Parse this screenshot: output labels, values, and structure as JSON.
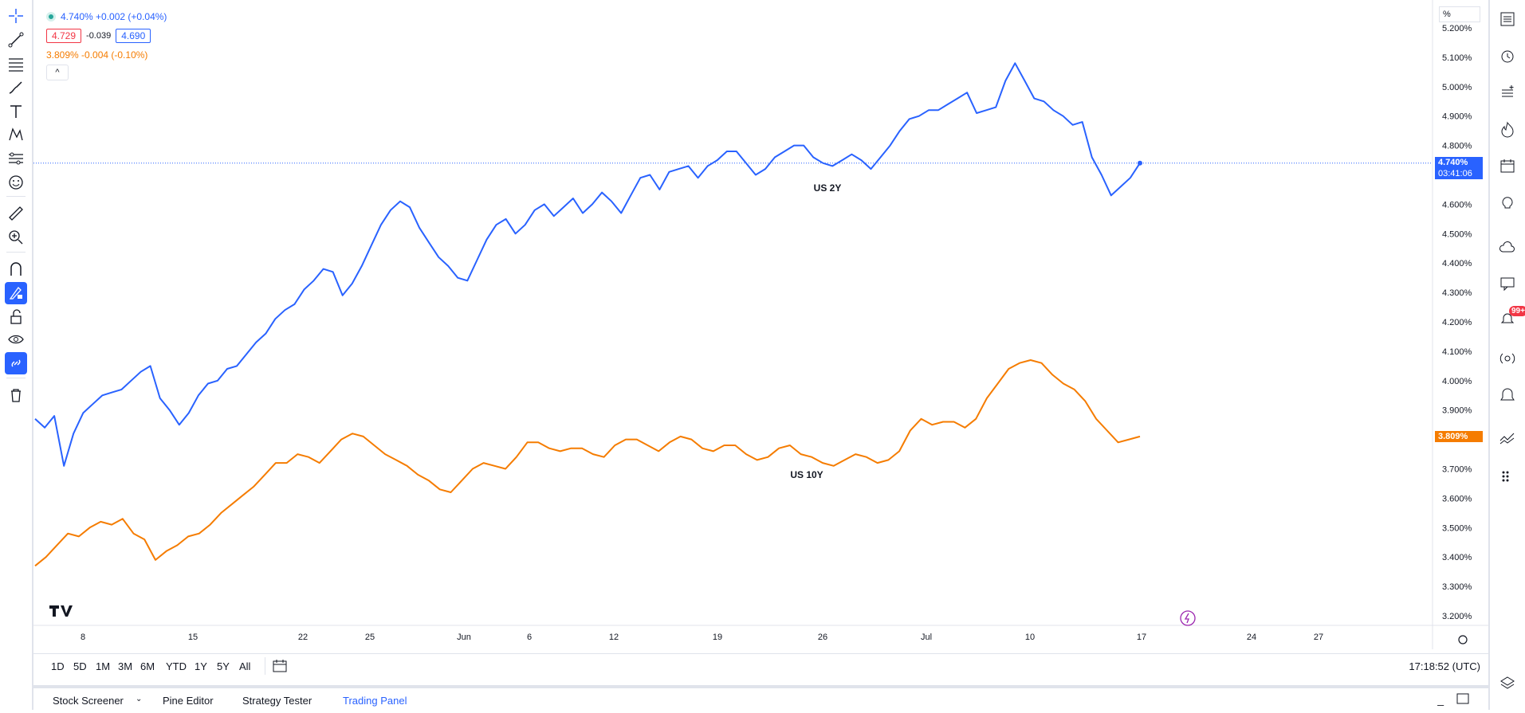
{
  "legend": {
    "price_change": "4.740% +0.002 (+0.04%)",
    "bid": "4.729",
    "spread": "-0.039",
    "ask": "4.690",
    "compare_line": "3.809% -0.004 (-0.10%)",
    "collapse_glyph": "^"
  },
  "price_scale": {
    "unit": "%",
    "ticks": [
      "5.200%",
      "5.100%",
      "5.000%",
      "4.900%",
      "4.800%",
      "4.600%",
      "4.500%",
      "4.400%",
      "4.300%",
      "4.200%",
      "4.100%",
      "4.000%",
      "3.900%",
      "3.700%",
      "3.600%",
      "3.500%",
      "3.400%",
      "3.300%",
      "3.200%"
    ],
    "last_us2y": "4.740%",
    "countdown": "03:41:06",
    "last_us10y": "3.809%"
  },
  "time_axis": {
    "labels": [
      "8",
      "15",
      "22",
      "25",
      "Jun",
      "6",
      "12",
      "19",
      "26",
      "Jul",
      "10",
      "17",
      "24",
      "27"
    ]
  },
  "range_buttons": [
    "1D",
    "5D",
    "1M",
    "3M",
    "6M",
    "YTD",
    "1Y",
    "5Y",
    "All"
  ],
  "clock": "17:18:52 (UTC)",
  "panel_tabs": [
    "Stock Screener",
    "Pine Editor",
    "Strategy Tester",
    "Trading Panel"
  ],
  "notification_count": "99+",
  "colors": {
    "us2y": "#2962ff",
    "us10y": "#f57c00",
    "accent": "#2962ff"
  },
  "chart_data": {
    "type": "line",
    "ylim": [
      3.2,
      5.2
    ],
    "series": [
      {
        "name": "US 2Y",
        "color": "#2962ff",
        "values": [
          3.87,
          3.84,
          3.88,
          3.71,
          3.82,
          3.89,
          3.92,
          3.95,
          3.96,
          3.97,
          4.0,
          4.03,
          4.05,
          3.94,
          3.9,
          3.85,
          3.89,
          3.95,
          3.99,
          4.0,
          4.04,
          4.05,
          4.09,
          4.13,
          4.16,
          4.21,
          4.24,
          4.26,
          4.31,
          4.34,
          4.38,
          4.37,
          4.29,
          4.33,
          4.39,
          4.46,
          4.53,
          4.58,
          4.61,
          4.59,
          4.52,
          4.47,
          4.42,
          4.39,
          4.35,
          4.34,
          4.41,
          4.48,
          4.53,
          4.55,
          4.5,
          4.53,
          4.58,
          4.6,
          4.56,
          4.59,
          4.62,
          4.57,
          4.6,
          4.64,
          4.61,
          4.57,
          4.63,
          4.69,
          4.7,
          4.65,
          4.71,
          4.72,
          4.73,
          4.69,
          4.73,
          4.75,
          4.78,
          4.78,
          4.74,
          4.7,
          4.72,
          4.76,
          4.78,
          4.8,
          4.8,
          4.76,
          4.74,
          4.73,
          4.75,
          4.77,
          4.75,
          4.72,
          4.76,
          4.8,
          4.85,
          4.89,
          4.9,
          4.92,
          4.92,
          4.94,
          4.96,
          4.98,
          4.91,
          4.92,
          4.93,
          5.02,
          5.08,
          5.02,
          4.96,
          4.95,
          4.92,
          4.9,
          4.87,
          4.88,
          4.76,
          4.7,
          4.63,
          4.66,
          4.69,
          4.74
        ]
      },
      {
        "name": "US 10Y",
        "color": "#f57c00",
        "values": [
          3.37,
          3.4,
          3.44,
          3.48,
          3.47,
          3.5,
          3.52,
          3.51,
          3.53,
          3.48,
          3.46,
          3.39,
          3.42,
          3.44,
          3.47,
          3.48,
          3.51,
          3.55,
          3.58,
          3.61,
          3.64,
          3.68,
          3.72,
          3.72,
          3.75,
          3.74,
          3.72,
          3.76,
          3.8,
          3.82,
          3.81,
          3.78,
          3.75,
          3.73,
          3.71,
          3.68,
          3.66,
          3.63,
          3.62,
          3.66,
          3.7,
          3.72,
          3.71,
          3.7,
          3.74,
          3.79,
          3.79,
          3.77,
          3.76,
          3.77,
          3.77,
          3.75,
          3.74,
          3.78,
          3.8,
          3.8,
          3.78,
          3.76,
          3.79,
          3.81,
          3.8,
          3.77,
          3.76,
          3.78,
          3.78,
          3.75,
          3.73,
          3.74,
          3.77,
          3.78,
          3.75,
          3.74,
          3.72,
          3.71,
          3.73,
          3.75,
          3.74,
          3.72,
          3.73,
          3.76,
          3.83,
          3.87,
          3.85,
          3.86,
          3.86,
          3.84,
          3.87,
          3.94,
          3.99,
          4.04,
          4.06,
          4.07,
          4.06,
          4.02,
          3.99,
          3.97,
          3.93,
          3.87,
          3.83,
          3.79,
          3.8,
          3.81
        ]
      }
    ]
  }
}
